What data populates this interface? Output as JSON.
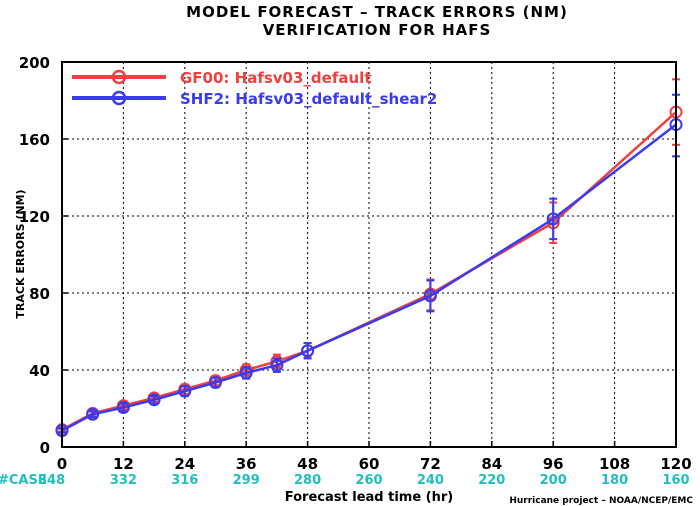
{
  "title_line1": "MODEL FORECAST – TRACK ERRORS (NM)",
  "title_line2": "VERIFICATION FOR HAFS",
  "credit": "Hurricane project – NOAA/NCEP/EMC",
  "case_label": "#CASE",
  "colors": {
    "red": "#f04040",
    "blue": "#3a3aef",
    "case": "#1fbfbf"
  },
  "cases": [
    {
      "x": 0,
      "label": "348"
    },
    {
      "x": 12,
      "label": "332"
    },
    {
      "x": 24,
      "label": "316"
    },
    {
      "x": 36,
      "label": "299"
    },
    {
      "x": 48,
      "label": "280"
    },
    {
      "x": 60,
      "label": "260"
    },
    {
      "x": 72,
      "label": "240"
    },
    {
      "x": 84,
      "label": "220"
    },
    {
      "x": 96,
      "label": "200"
    },
    {
      "x": 108,
      "label": "180"
    },
    {
      "x": 120,
      "label": "160"
    }
  ],
  "chart_data": {
    "type": "line",
    "title": "MODEL FORECAST – TRACK ERRORS (NM)",
    "subtitle": "VERIFICATION FOR HAFS",
    "xlabel": "Forecast lead time (hr)",
    "ylabel": "TRACK ERRORS (NM)",
    "xlim": [
      0,
      120
    ],
    "ylim": [
      0,
      200
    ],
    "xticks": [
      0,
      12,
      24,
      36,
      48,
      60,
      72,
      84,
      96,
      108,
      120
    ],
    "yticks": [
      0,
      40,
      80,
      120,
      160,
      200
    ],
    "legend_position": "top-left",
    "grid": true,
    "series": [
      {
        "name": "GF00: Hafsv03_default",
        "color": "#f04040",
        "x": [
          0,
          6,
          12,
          18,
          24,
          30,
          36,
          42,
          48,
          72,
          96,
          120
        ],
        "y": [
          9,
          17.5,
          21.5,
          25.5,
          30,
          34.5,
          40,
          44.5,
          50,
          79.5,
          116.5,
          174
        ],
        "err_low": [
          8,
          16,
          19.5,
          23.5,
          27.5,
          32,
          37,
          41,
          46.5,
          71,
          106,
          157
        ],
        "err_high": [
          10,
          19,
          23.5,
          27.5,
          32.5,
          37,
          43,
          48,
          54,
          87,
          127,
          191
        ]
      },
      {
        "name": "SHF2: Hafsv03_default_shear2",
        "color": "#3a3aef",
        "x": [
          0,
          6,
          12,
          18,
          24,
          30,
          36,
          42,
          48,
          72,
          96,
          120
        ],
        "y": [
          8.5,
          17,
          20.5,
          24.5,
          29,
          33.5,
          38.5,
          42.5,
          50,
          78.5,
          118.5,
          167.5
        ],
        "err_low": [
          7.5,
          15.5,
          18.5,
          22.5,
          26.5,
          31,
          35.5,
          39,
          46,
          70.5,
          108,
          151
        ],
        "err_high": [
          9.5,
          18.5,
          22.5,
          26.5,
          31.5,
          36,
          41.5,
          46,
          54,
          86.5,
          129,
          183
        ]
      }
    ]
  }
}
